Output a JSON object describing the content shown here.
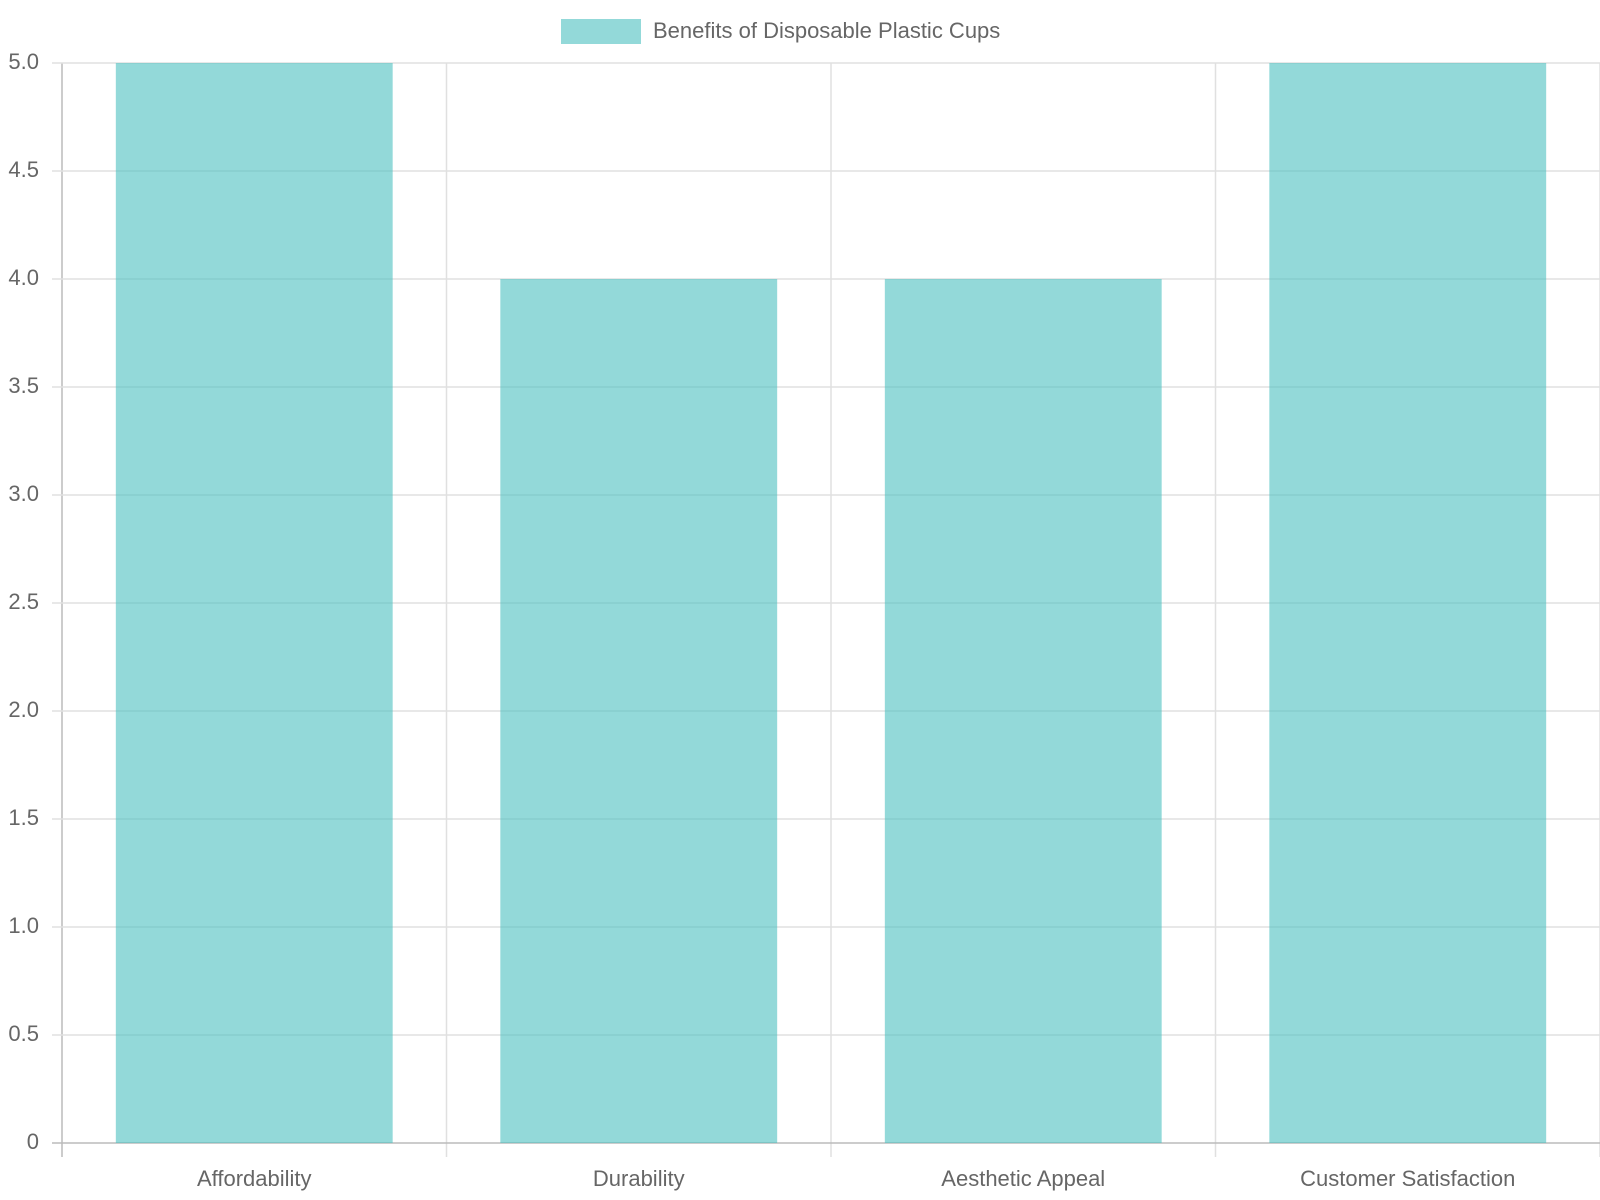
{
  "chart_data": {
    "type": "bar",
    "categories": [
      "Affordability",
      "Durability",
      "Aesthetic Appeal",
      "Customer Satisfaction"
    ],
    "series": [
      {
        "name": "Benefits of Disposable Plastic Cups",
        "color": "rgba(75, 192, 192, 0.6)",
        "values": [
          5,
          4,
          4,
          5
        ]
      }
    ],
    "ylim": [
      0,
      5
    ],
    "yticks": [
      0,
      0.5,
      {
        "value": 1,
        "label": "1.0"
      },
      1.5,
      {
        "value": 2,
        "label": "2.0"
      },
      2.5,
      {
        "value": 3,
        "label": "3.0"
      },
      3.5,
      {
        "value": 4,
        "label": "4.0"
      },
      4.5,
      {
        "value": 5,
        "label": "5.0"
      }
    ],
    "grid": true,
    "legend": "top"
  }
}
